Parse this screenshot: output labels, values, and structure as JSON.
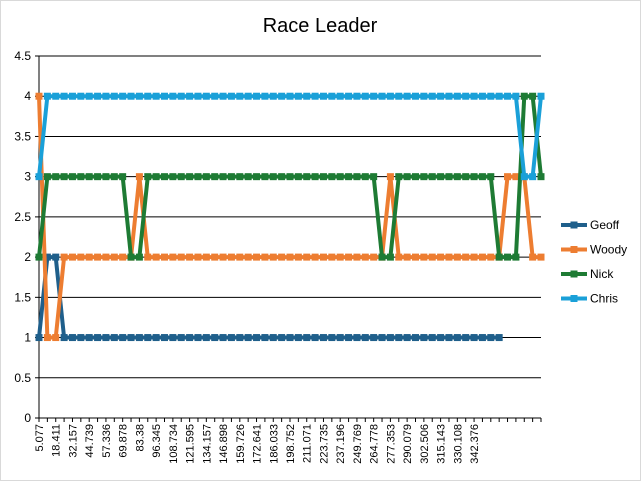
{
  "chart_data": {
    "type": "line",
    "title": "Race Leader",
    "xlabel": "",
    "ylabel": "",
    "ylim": [
      0,
      4.5
    ],
    "yticks": [
      "0",
      "0.5",
      "1",
      "1.5",
      "2",
      "2.5",
      "3",
      "3.5",
      "4",
      "4.5"
    ],
    "x_tick_labels": [
      "5.077",
      "18.411",
      "32.157",
      "44.739",
      "57.336",
      "69.878",
      "83.38",
      "96.345",
      "108.734",
      "121.595",
      "134.157",
      "146.898",
      "159.726",
      "172.641",
      "186.033",
      "198.752",
      "211.071",
      "223.735",
      "237.196",
      "249.769",
      "264.778",
      "277.353",
      "290.079",
      "302.506",
      "315.143",
      "330.108",
      "342.376"
    ],
    "num_points": 61,
    "grid": "horizontal",
    "legend_position": "right",
    "series": [
      {
        "name": "Geoff",
        "color": "#1f5f8b",
        "values": [
          1,
          2,
          2,
          1,
          1,
          1,
          1,
          1,
          1,
          1,
          1,
          1,
          1,
          1,
          1,
          1,
          1,
          1,
          1,
          1,
          1,
          1,
          1,
          1,
          1,
          1,
          1,
          1,
          1,
          1,
          1,
          1,
          1,
          1,
          1,
          1,
          1,
          1,
          1,
          1,
          1,
          1,
          1,
          1,
          1,
          1,
          1,
          1,
          1,
          1,
          1,
          1,
          1,
          1,
          1,
          1,
          null,
          null,
          null,
          null,
          null
        ]
      },
      {
        "name": "Woody",
        "color": "#ed7d31",
        "values": [
          4,
          1,
          1,
          2,
          2,
          2,
          2,
          2,
          2,
          2,
          2,
          2,
          3,
          2,
          2,
          2,
          2,
          2,
          2,
          2,
          2,
          2,
          2,
          2,
          2,
          2,
          2,
          2,
          2,
          2,
          2,
          2,
          2,
          2,
          2,
          2,
          2,
          2,
          2,
          2,
          2,
          2,
          3,
          2,
          2,
          2,
          2,
          2,
          2,
          2,
          2,
          2,
          2,
          2,
          2,
          2,
          3,
          3,
          3,
          2,
          2
        ]
      },
      {
        "name": "Nick",
        "color": "#1e7b34",
        "values": [
          2,
          3,
          3,
          3,
          3,
          3,
          3,
          3,
          3,
          3,
          3,
          2,
          2,
          3,
          3,
          3,
          3,
          3,
          3,
          3,
          3,
          3,
          3,
          3,
          3,
          3,
          3,
          3,
          3,
          3,
          3,
          3,
          3,
          3,
          3,
          3,
          3,
          3,
          3,
          3,
          3,
          2,
          2,
          3,
          3,
          3,
          3,
          3,
          3,
          3,
          3,
          3,
          3,
          3,
          3,
          2,
          2,
          2,
          4,
          4,
          3
        ]
      },
      {
        "name": "Chris",
        "color": "#1aa0d8",
        "values": [
          3,
          4,
          4,
          4,
          4,
          4,
          4,
          4,
          4,
          4,
          4,
          4,
          4,
          4,
          4,
          4,
          4,
          4,
          4,
          4,
          4,
          4,
          4,
          4,
          4,
          4,
          4,
          4,
          4,
          4,
          4,
          4,
          4,
          4,
          4,
          4,
          4,
          4,
          4,
          4,
          4,
          4,
          4,
          4,
          4,
          4,
          4,
          4,
          4,
          4,
          4,
          4,
          4,
          4,
          4,
          4,
          4,
          4,
          3,
          3,
          4
        ]
      }
    ]
  }
}
